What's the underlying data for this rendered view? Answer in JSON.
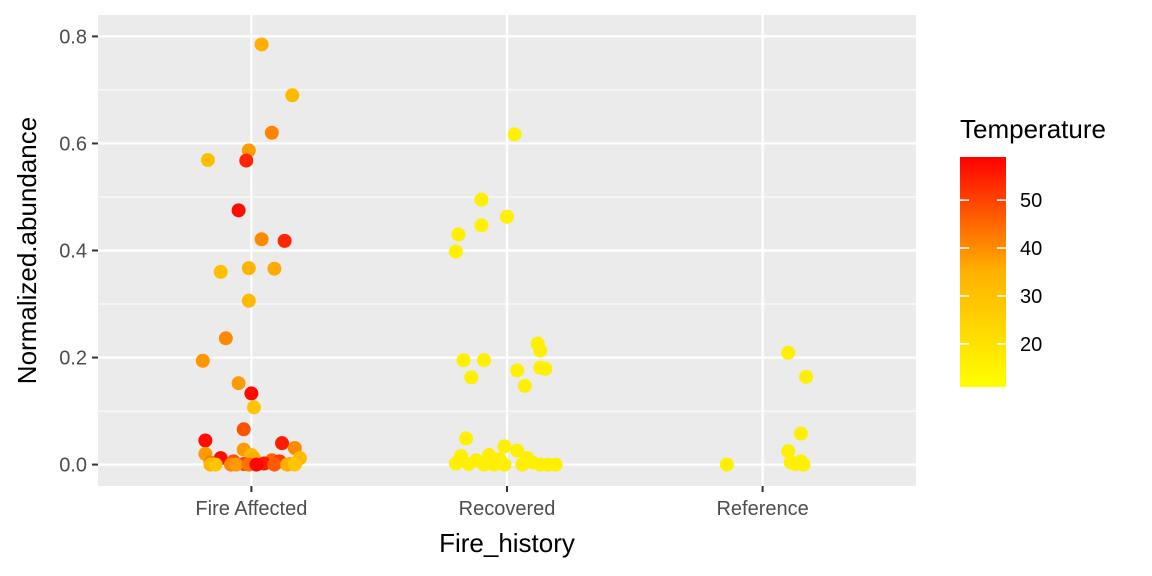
{
  "chart_data": {
    "type": "scatter",
    "title": "",
    "xlabel": "Fire_history",
    "ylabel": "Normalized.abundance",
    "categories": [
      "Fire Affected",
      "Recovered",
      "Reference"
    ],
    "y_ticks": [
      "0.0",
      "0.2",
      "0.4",
      "0.6",
      "0.8"
    ],
    "y_tick_values": [
      0,
      0.2,
      0.4,
      0.6,
      0.8
    ],
    "ylim": [
      -0.04,
      0.84
    ],
    "grid": true,
    "panel_background": "#ebebeb",
    "jitter": "horizontal",
    "legend": {
      "title": "Temperature",
      "position": "right",
      "type": "continuous-colorbar",
      "breaks": [
        20,
        30,
        40,
        50
      ],
      "labels": [
        "20",
        "30",
        "40",
        "50"
      ],
      "range": [
        11,
        59
      ],
      "color_low": "#ffff00",
      "color_high": "#ff0000"
    },
    "points": [
      {
        "category": "Fire Affected",
        "jitter": 0.04,
        "y": 0.785,
        "temperature": 26
      },
      {
        "category": "Fire Affected",
        "jitter": 0.16,
        "y": 0.69,
        "temperature": 24
      },
      {
        "category": "Fire Affected",
        "jitter": 0.08,
        "y": 0.62,
        "temperature": 34
      },
      {
        "category": "Fire Affected",
        "jitter": -0.01,
        "y": 0.587,
        "temperature": 30
      },
      {
        "category": "Fire Affected",
        "jitter": -0.17,
        "y": 0.569,
        "temperature": 23
      },
      {
        "category": "Fire Affected",
        "jitter": -0.02,
        "y": 0.568,
        "temperature": 52
      },
      {
        "category": "Fire Affected",
        "jitter": -0.05,
        "y": 0.475,
        "temperature": 57
      },
      {
        "category": "Fire Affected",
        "jitter": 0.04,
        "y": 0.421,
        "temperature": 33
      },
      {
        "category": "Fire Affected",
        "jitter": 0.13,
        "y": 0.418,
        "temperature": 52
      },
      {
        "category": "Fire Affected",
        "jitter": -0.01,
        "y": 0.367,
        "temperature": 25
      },
      {
        "category": "Fire Affected",
        "jitter": 0.09,
        "y": 0.366,
        "temperature": 27
      },
      {
        "category": "Fire Affected",
        "jitter": -0.12,
        "y": 0.36,
        "temperature": 23
      },
      {
        "category": "Fire Affected",
        "jitter": -0.01,
        "y": 0.306,
        "temperature": 24
      },
      {
        "category": "Fire Affected",
        "jitter": -0.1,
        "y": 0.236,
        "temperature": 33
      },
      {
        "category": "Fire Affected",
        "jitter": -0.19,
        "y": 0.194,
        "temperature": 31
      },
      {
        "category": "Fire Affected",
        "jitter": -0.05,
        "y": 0.152,
        "temperature": 30
      },
      {
        "category": "Fire Affected",
        "jitter": 0.0,
        "y": 0.133,
        "temperature": 57
      },
      {
        "category": "Fire Affected",
        "jitter": 0.01,
        "y": 0.107,
        "temperature": 22
      },
      {
        "category": "Fire Affected",
        "jitter": -0.03,
        "y": 0.066,
        "temperature": 44
      },
      {
        "category": "Fire Affected",
        "jitter": -0.18,
        "y": 0.045,
        "temperature": 57
      },
      {
        "category": "Fire Affected",
        "jitter": 0.12,
        "y": 0.04,
        "temperature": 54
      },
      {
        "category": "Fire Affected",
        "jitter": 0.17,
        "y": 0.031,
        "temperature": 33
      },
      {
        "category": "Fire Affected",
        "jitter": -0.03,
        "y": 0.028,
        "temperature": 30
      },
      {
        "category": "Fire Affected",
        "jitter": -0.18,
        "y": 0.02,
        "temperature": 30
      },
      {
        "category": "Fire Affected",
        "jitter": 0.0,
        "y": 0.018,
        "temperature": 24
      },
      {
        "category": "Fire Affected",
        "jitter": 0.01,
        "y": 0.012,
        "temperature": 26
      },
      {
        "category": "Fire Affected",
        "jitter": -0.12,
        "y": 0.012,
        "temperature": 57
      },
      {
        "category": "Fire Affected",
        "jitter": 0.19,
        "y": 0.012,
        "temperature": 24
      },
      {
        "category": "Fire Affected",
        "jitter": 0.08,
        "y": 0.008,
        "temperature": 40
      },
      {
        "category": "Fire Affected",
        "jitter": -0.07,
        "y": 0.006,
        "temperature": 44
      },
      {
        "category": "Fire Affected",
        "jitter": 0.11,
        "y": 0.006,
        "temperature": 48
      },
      {
        "category": "Fire Affected",
        "jitter": -0.16,
        "y": 0.004,
        "temperature": 36
      },
      {
        "category": "Fire Affected",
        "jitter": 0.05,
        "y": 0.002,
        "temperature": 54
      },
      {
        "category": "Fire Affected",
        "jitter": -0.03,
        "y": 0.001,
        "temperature": 46
      },
      {
        "category": "Fire Affected",
        "jitter": 0.15,
        "y": 0.001,
        "temperature": 28
      },
      {
        "category": "Fire Affected",
        "jitter": -0.08,
        "y": 0.0,
        "temperature": 34
      },
      {
        "category": "Fire Affected",
        "jitter": -0.16,
        "y": 0.0,
        "temperature": 25
      },
      {
        "category": "Fire Affected",
        "jitter": -0.14,
        "y": 0.0,
        "temperature": 22
      },
      {
        "category": "Fire Affected",
        "jitter": -0.06,
        "y": 0.0,
        "temperature": 30
      },
      {
        "category": "Fire Affected",
        "jitter": -0.01,
        "y": 0.0,
        "temperature": 38
      },
      {
        "category": "Fire Affected",
        "jitter": 0.02,
        "y": 0.0,
        "temperature": 58
      },
      {
        "category": "Fire Affected",
        "jitter": 0.09,
        "y": 0.0,
        "temperature": 42
      },
      {
        "category": "Fire Affected",
        "jitter": 0.14,
        "y": 0.0,
        "temperature": 26
      },
      {
        "category": "Fire Affected",
        "jitter": 0.17,
        "y": 0.0,
        "temperature": 22
      },
      {
        "category": "Recovered",
        "jitter": 0.03,
        "y": 0.617,
        "temperature": 14
      },
      {
        "category": "Recovered",
        "jitter": -0.1,
        "y": 0.495,
        "temperature": 14
      },
      {
        "category": "Recovered",
        "jitter": 0.0,
        "y": 0.463,
        "temperature": 14
      },
      {
        "category": "Recovered",
        "jitter": -0.1,
        "y": 0.447,
        "temperature": 14
      },
      {
        "category": "Recovered",
        "jitter": -0.19,
        "y": 0.43,
        "temperature": 14
      },
      {
        "category": "Recovered",
        "jitter": -0.2,
        "y": 0.398,
        "temperature": 14
      },
      {
        "category": "Recovered",
        "jitter": 0.12,
        "y": 0.226,
        "temperature": 14
      },
      {
        "category": "Recovered",
        "jitter": 0.13,
        "y": 0.213,
        "temperature": 14
      },
      {
        "category": "Recovered",
        "jitter": -0.17,
        "y": 0.195,
        "temperature": 14
      },
      {
        "category": "Recovered",
        "jitter": -0.09,
        "y": 0.195,
        "temperature": 14
      },
      {
        "category": "Recovered",
        "jitter": 0.13,
        "y": 0.181,
        "temperature": 14
      },
      {
        "category": "Recovered",
        "jitter": 0.15,
        "y": 0.179,
        "temperature": 14
      },
      {
        "category": "Recovered",
        "jitter": 0.04,
        "y": 0.176,
        "temperature": 14
      },
      {
        "category": "Recovered",
        "jitter": -0.14,
        "y": 0.163,
        "temperature": 14
      },
      {
        "category": "Recovered",
        "jitter": 0.07,
        "y": 0.147,
        "temperature": 14
      },
      {
        "category": "Recovered",
        "jitter": -0.16,
        "y": 0.049,
        "temperature": 14
      },
      {
        "category": "Recovered",
        "jitter": -0.01,
        "y": 0.034,
        "temperature": 14
      },
      {
        "category": "Recovered",
        "jitter": 0.04,
        "y": 0.026,
        "temperature": 14
      },
      {
        "category": "Recovered",
        "jitter": -0.18,
        "y": 0.016,
        "temperature": 14
      },
      {
        "category": "Recovered",
        "jitter": -0.07,
        "y": 0.018,
        "temperature": 14
      },
      {
        "category": "Recovered",
        "jitter": 0.08,
        "y": 0.012,
        "temperature": 14
      },
      {
        "category": "Recovered",
        "jitter": -0.03,
        "y": 0.01,
        "temperature": 14
      },
      {
        "category": "Recovered",
        "jitter": -0.12,
        "y": 0.008,
        "temperature": 14
      },
      {
        "category": "Recovered",
        "jitter": 0.1,
        "y": 0.004,
        "temperature": 14
      },
      {
        "category": "Recovered",
        "jitter": -0.2,
        "y": 0.002,
        "temperature": 14
      },
      {
        "category": "Recovered",
        "jitter": -0.15,
        "y": 0.001,
        "temperature": 14
      },
      {
        "category": "Recovered",
        "jitter": -0.09,
        "y": 0.0,
        "temperature": 14
      },
      {
        "category": "Recovered",
        "jitter": -0.05,
        "y": 0.0,
        "temperature": 14
      },
      {
        "category": "Recovered",
        "jitter": -0.01,
        "y": 0.0,
        "temperature": 14
      },
      {
        "category": "Recovered",
        "jitter": 0.06,
        "y": 0.0,
        "temperature": 14
      },
      {
        "category": "Recovered",
        "jitter": 0.13,
        "y": 0.0,
        "temperature": 14
      },
      {
        "category": "Recovered",
        "jitter": 0.16,
        "y": 0.0,
        "temperature": 14
      },
      {
        "category": "Recovered",
        "jitter": 0.19,
        "y": 0.0,
        "temperature": 14
      },
      {
        "category": "Reference",
        "jitter": 0.1,
        "y": 0.209,
        "temperature": 14
      },
      {
        "category": "Reference",
        "jitter": 0.17,
        "y": 0.164,
        "temperature": 14
      },
      {
        "category": "Reference",
        "jitter": 0.15,
        "y": 0.058,
        "temperature": 14
      },
      {
        "category": "Reference",
        "jitter": 0.1,
        "y": 0.025,
        "temperature": 14
      },
      {
        "category": "Reference",
        "jitter": 0.15,
        "y": 0.006,
        "temperature": 14
      },
      {
        "category": "Reference",
        "jitter": 0.11,
        "y": 0.004,
        "temperature": 14
      },
      {
        "category": "Reference",
        "jitter": 0.13,
        "y": 0.001,
        "temperature": 14
      },
      {
        "category": "Reference",
        "jitter": 0.16,
        "y": 0.0,
        "temperature": 14
      },
      {
        "category": "Reference",
        "jitter": -0.14,
        "y": 0.0,
        "temperature": 14
      }
    ]
  }
}
